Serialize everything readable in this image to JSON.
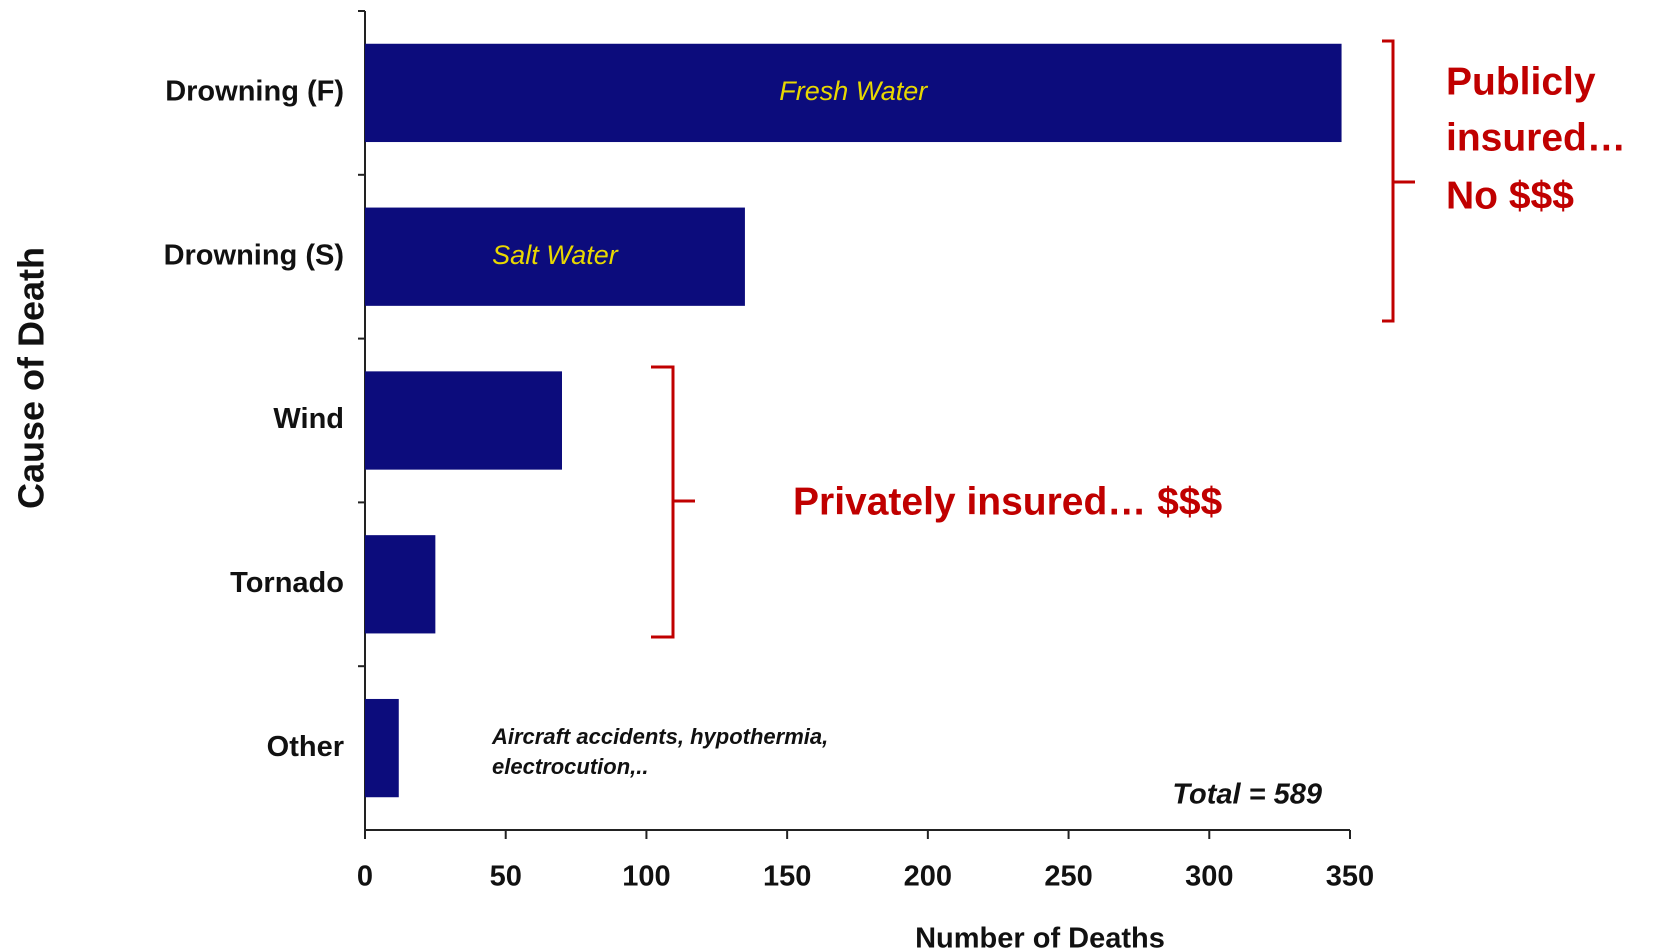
{
  "chart_data": {
    "type": "bar",
    "orientation": "horizontal",
    "x_label": "Number of Deaths",
    "y_label": "Cause of Death",
    "categories": [
      "Drowning (F)",
      "Drowning (S)",
      "Wind",
      "Tornado",
      "Other"
    ],
    "values": [
      347,
      135,
      70,
      25,
      12
    ],
    "color": "#0c0c7c",
    "xlim": [
      0,
      350
    ],
    "xticks": [
      0,
      50,
      100,
      150,
      200,
      250,
      300,
      350
    ],
    "grid": false,
    "bar_annotations": [
      "Fresh Water",
      "Salt Water"
    ],
    "notes": [
      "Aircraft accidents, hypothermia,",
      "electrocution,..",
      "Total = 589"
    ],
    "groups": [
      {
        "lines": [
          "Publicly",
          "insured…",
          "No $$$"
        ],
        "color": "#c00000"
      },
      {
        "lines": [
          "Privately insured… $$$"
        ],
        "color": "#c00000"
      }
    ]
  }
}
